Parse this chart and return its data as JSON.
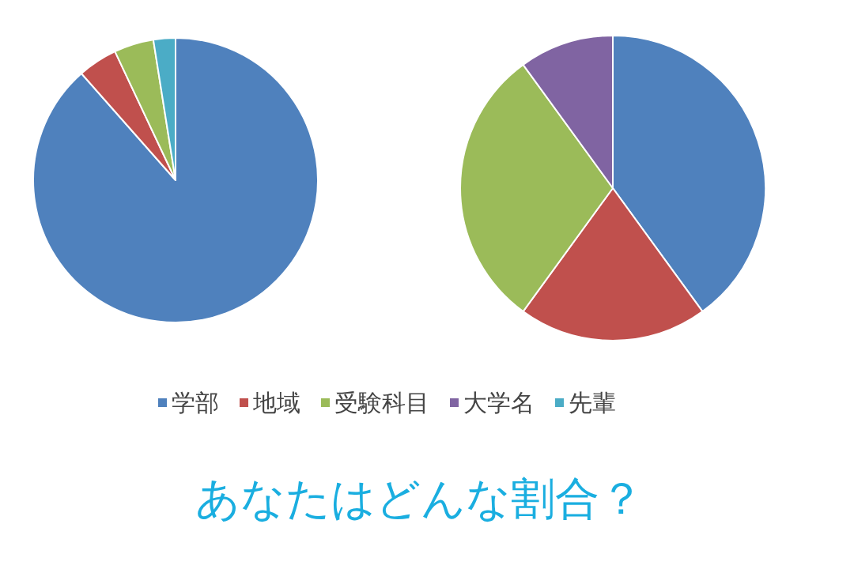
{
  "chart_data": [
    {
      "type": "pie",
      "categories": [
        null,
        null,
        null,
        null
      ],
      "values": [
        88.5,
        4.5,
        4.5,
        2.5
      ],
      "colors": [
        "#4f81bd",
        "#c0504d",
        "#9bbb59",
        "#4bacc6"
      ],
      "legend": false
    },
    {
      "type": "pie",
      "title": "あなたはどんな割合？",
      "categories": [
        "学部",
        "地域",
        "受験科目",
        "大学名",
        "先輩"
      ],
      "values": [
        40,
        20,
        30,
        10,
        0
      ],
      "colors": [
        "#4f81bd",
        "#c0504d",
        "#9bbb59",
        "#8064a2",
        "#4bacc6"
      ],
      "legend": "bottom"
    }
  ]
}
